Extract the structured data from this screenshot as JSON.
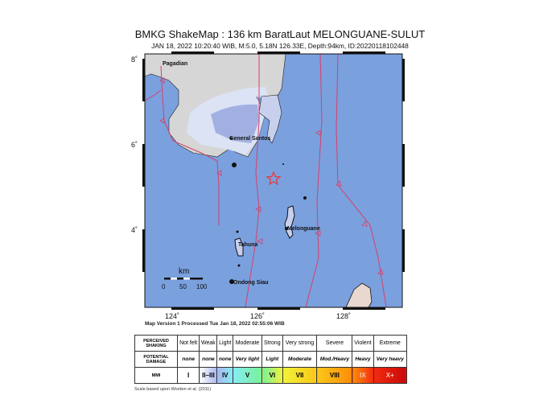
{
  "title": "BMKG ShakeMap : 136 km BaratLaut MELONGUANE-SULUT",
  "subtitle": "JAN 18, 2022 10:20:40 WIB, M:5.0, 5.18N 126.33E, Depth:94km, ID:20220118102448",
  "map": {
    "lat_ticks": [
      "8˚",
      "6˚",
      "4˚"
    ],
    "lon_ticks": [
      "124˚",
      "126˚",
      "128˚"
    ],
    "places": [
      "Pagadian",
      "General Santos",
      "Melonguane",
      "Tahuna",
      "Ondong Siau"
    ],
    "epicenter_icon": "star-icon",
    "epicenter_color": "#e8363a",
    "sea_color": "#7aa0de",
    "fault_color": "#d8406a",
    "scale_bar": {
      "unit": "km",
      "labels": [
        "0",
        "50",
        "100"
      ]
    }
  },
  "version_text": "Map Version 1 Processed Tue Jan 18, 2022 02:55:06 WIB",
  "legend": {
    "shaking_header": "PERCEIVED SHAKING",
    "damage_header": "POTENTIAL DAMAGE",
    "mmi_header": "MMI",
    "columns": [
      {
        "shaking": "Not felt",
        "damage": "none",
        "mmi": "I",
        "color": "#ffffff"
      },
      {
        "shaking": "Weak",
        "damage": "none",
        "mmi": "II–III",
        "color": "#a8b8f0"
      },
      {
        "shaking": "Light",
        "damage": "none",
        "mmi": "IV",
        "color": "#86ecf4"
      },
      {
        "shaking": "Moderate",
        "damage": "Very light",
        "mmi": "V",
        "color": "#78f29a"
      },
      {
        "shaking": "Strong",
        "damage": "Light",
        "mmi": "VI",
        "color": "#f2f23a"
      },
      {
        "shaking": "Very strong",
        "damage": "Moderate",
        "mmi": "VII",
        "color": "#fcc81a"
      },
      {
        "shaking": "Severe",
        "damage": "Mod./Heavy",
        "mmi": "VIII",
        "color": "#fc8c0a"
      },
      {
        "shaking": "Violent",
        "damage": "Heavy",
        "mmi": "IX",
        "color": "#f42a10"
      },
      {
        "shaking": "Extreme",
        "damage": "Very heavy",
        "mmi": "X+",
        "color": "#c80a0a"
      }
    ]
  },
  "scale_note": "Scale based upon Worden et al. (2011)"
}
